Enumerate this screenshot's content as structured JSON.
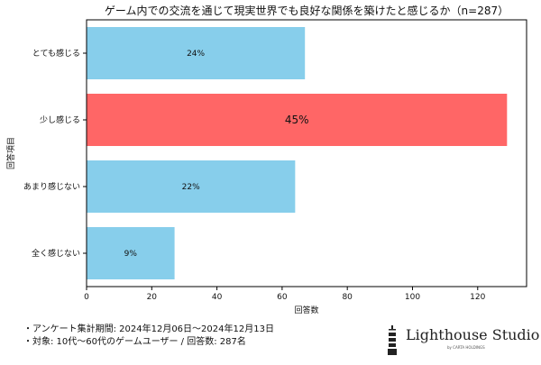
{
  "chart_data": {
    "type": "bar",
    "orientation": "horizontal",
    "title": "ゲーム内での交流を通じて現実世界でも良好な関係を築けたと感じるか（n=287）",
    "xlabel": "回答数",
    "ylabel": "回答項目",
    "categories": [
      "とても感じる",
      "少し感じる",
      "あまり感じない",
      "全く感じない"
    ],
    "values": [
      67,
      129,
      64,
      27
    ],
    "labels": [
      "24%",
      "45%",
      "22%",
      "9%"
    ],
    "colors": [
      "#87CEEB",
      "#FF6666",
      "#87CEEB",
      "#87CEEB"
    ],
    "xlim": [
      0,
      135
    ],
    "xticks": [
      0,
      20,
      40,
      60,
      80,
      100,
      120
    ],
    "grid": false
  },
  "footer": {
    "line1": "・アンケート集計期間: 2024年12月06日～2024年12月13日",
    "line2": "・対象: 10代～60代のゲームユーザー / 回答数: 287名"
  },
  "logo": {
    "name": "Lighthouse Studio",
    "sub": "by CARTA HOLDINGS"
  }
}
